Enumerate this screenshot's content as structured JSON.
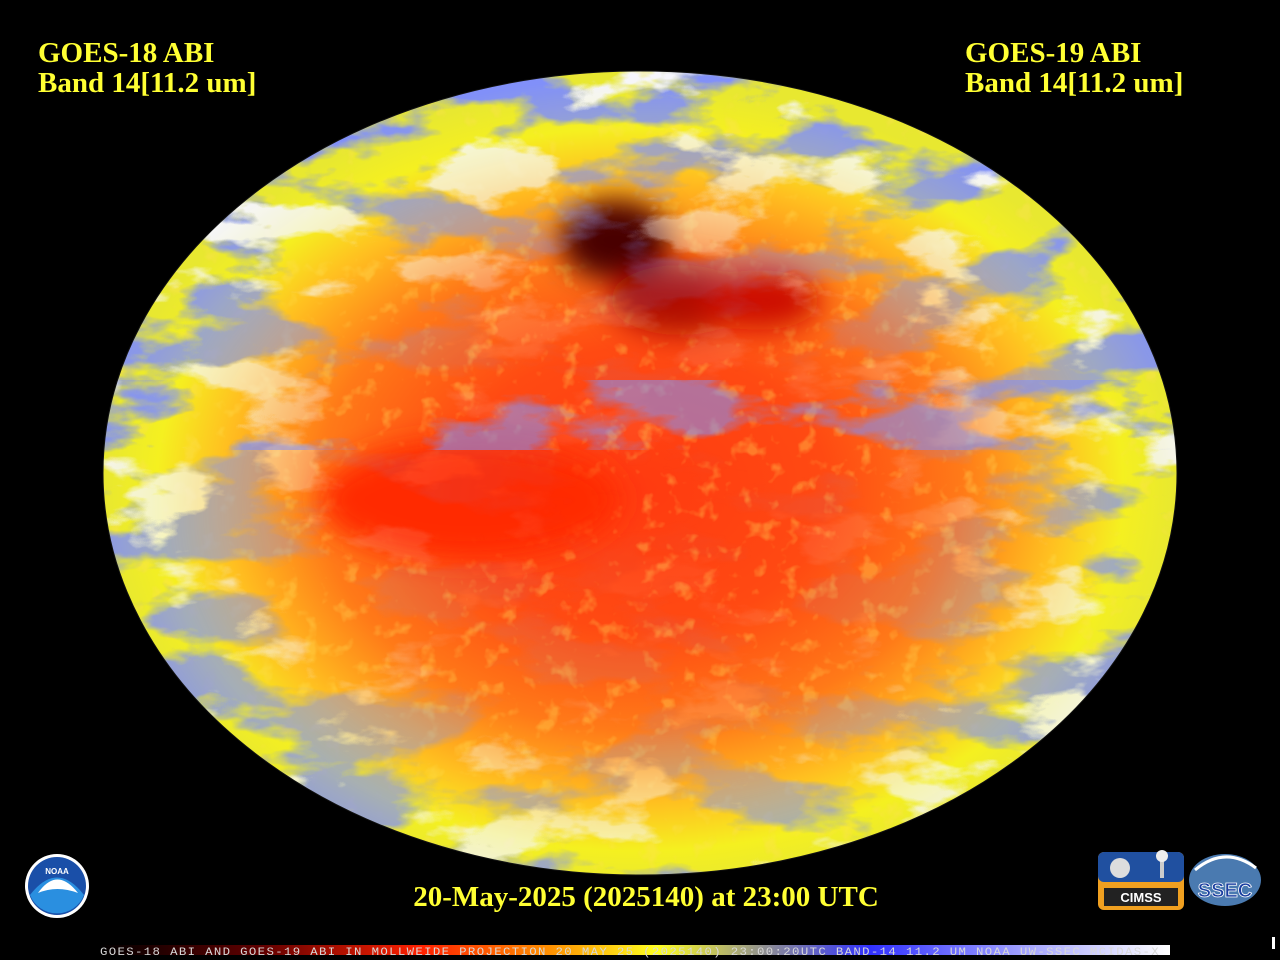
{
  "header": {
    "left": {
      "line1": "GOES-18 ABI",
      "line2": "Band 14[11.2 um]"
    },
    "right": {
      "line1": "GOES-19 ABI",
      "line2": "Band 14[11.2 um]"
    }
  },
  "footer": {
    "timestamp": "20-May-2025 (2025140) at 23:00 UTC",
    "banner": "GOES-18 ABI AND GOES-19 ABI IN MOLLWEIDE PROJECTION 20 MAY 25 (2025140) 23:00:20UTC BAND-14 11.2 UM NOAA UW-SSEC MCIDAS-X"
  },
  "logos": {
    "noaa": "NOAA",
    "cimss": "CIMSS",
    "ssec": "SSEC"
  }
}
